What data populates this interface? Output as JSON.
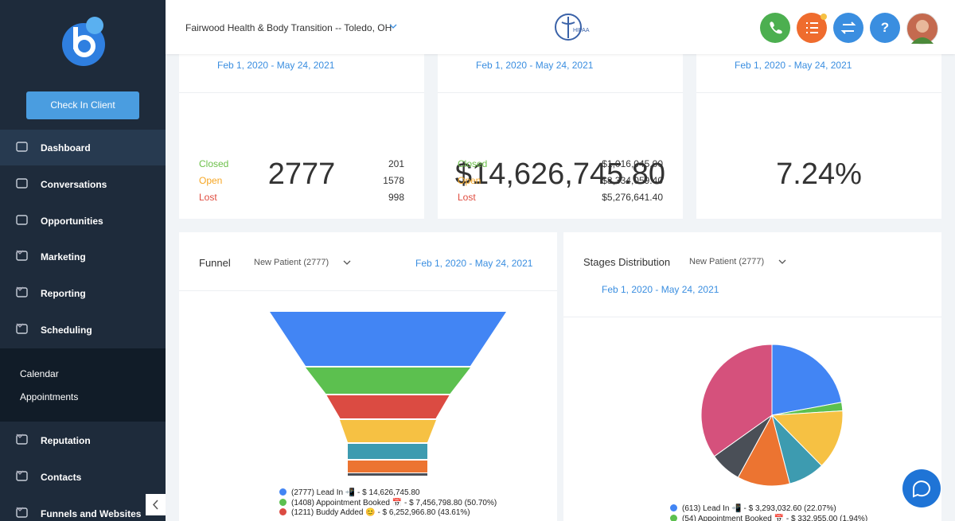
{
  "sidebar": {
    "button": "Check In Client",
    "nav": [
      {
        "label": "Dashboard"
      },
      {
        "label": "Conversations"
      },
      {
        "label": "Opportunities"
      },
      {
        "label": "Marketing"
      },
      {
        "label": "Reporting"
      },
      {
        "label": "Scheduling"
      }
    ],
    "submenu": [
      "Calendar",
      "Appointments"
    ],
    "nav2": [
      {
        "label": "Reputation"
      },
      {
        "label": "Contacts"
      },
      {
        "label": "Funnels and Websites"
      }
    ]
  },
  "header": {
    "location": "Fairwood Health & Body Transition -- Toledo, OH",
    "badge": "HIPAA",
    "help": "?"
  },
  "cards": [
    {
      "date": "Feb 1, 2020 - May 24, 2021",
      "total": "2777",
      "rows": [
        {
          "label": "Closed",
          "value": "201"
        },
        {
          "label": "Open",
          "value": "1578"
        },
        {
          "label": "Lost",
          "value": "998"
        }
      ]
    },
    {
      "date": "Feb 1, 2020 - May 24, 2021",
      "total": "$14,626,745.80",
      "rows": [
        {
          "label": "Closed",
          "value": "$1,016,045.00"
        },
        {
          "label": "Open",
          "value": "$8,334,059.40"
        },
        {
          "label": "Lost",
          "value": "$5,276,641.40"
        }
      ]
    },
    {
      "date": "Feb 1, 2020 - May 24, 2021",
      "total": "7.24%"
    }
  ],
  "funnel": {
    "title": "Funnel",
    "filter": "New Patient (2777)",
    "date": "Feb 1, 2020 - May 24, 2021",
    "stages": [
      {
        "count": 2777,
        "color": "#4285f4",
        "legend": "(2777) Lead In 📲 - $ 14,626,745.80"
      },
      {
        "count": 1408,
        "color": "#5cc04f",
        "legend": "(1408) Appointment Booked 📅 - $ 7,456,798.80 (50.70%)"
      },
      {
        "count": 1211,
        "color": "#db4b42",
        "legend": "(1211) Buddy Added 😊 - $ 6,252,966.80 (43.61%)"
      }
    ]
  },
  "pie": {
    "title": "Stages Distribution",
    "filter": "New Patient (2777)",
    "date": "Feb 1, 2020 - May 24, 2021",
    "values": [
      613,
      54,
      378,
      231,
      333,
      200,
      968
    ],
    "colors": [
      "#4285f4",
      "#5cc04f",
      "#f6c143",
      "#3d9bb0",
      "#ec7431",
      "#4a4f57",
      "#d5517c"
    ],
    "legend": [
      "(613) Lead In 📲 - $ 3,293,032.60 (22.07%)",
      "(54) Appointment Booked 📅 - $ 332,955.00 (1.94%)"
    ]
  }
}
